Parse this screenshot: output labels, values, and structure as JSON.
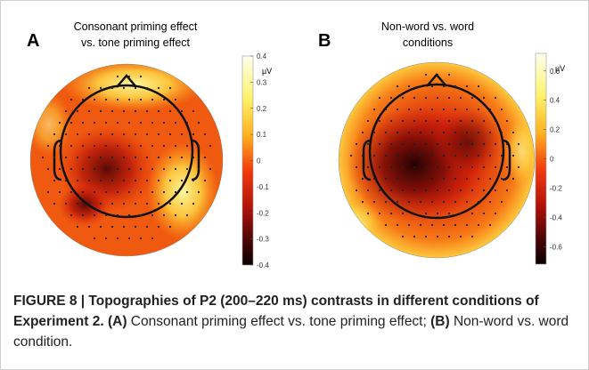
{
  "figure": {
    "panels": [
      {
        "letter": "A",
        "title": [
          "Consonant priming effect",
          "vs. tone priming effect"
        ],
        "colorbar": {
          "unit": "µV",
          "range": [
            -0.4,
            0.4
          ],
          "ticks": [
            0.4,
            0.3,
            0.2,
            0.1,
            0,
            -0.1,
            -0.2,
            -0.3,
            -0.4
          ]
        }
      },
      {
        "letter": "B",
        "title": [
          "Non-word vs. word",
          "conditions"
        ],
        "colorbar": {
          "unit": "µV",
          "range": [
            -0.72,
            0.72
          ],
          "ticks": [
            0.6,
            0.4,
            0.2,
            0,
            -0.2,
            -0.4,
            -0.6
          ]
        }
      }
    ],
    "caption": {
      "label": "FIGURE 8 | Topographies of P2 (200–220 ms) contrasts in different conditions of Experiment 2.",
      "parts": [
        {
          "bold": "(A)",
          "text": " Consonant priming effect vs. tone priming effect; "
        },
        {
          "bold": "(B)",
          "text": " Non-word vs. word condition."
        }
      ]
    }
  }
}
